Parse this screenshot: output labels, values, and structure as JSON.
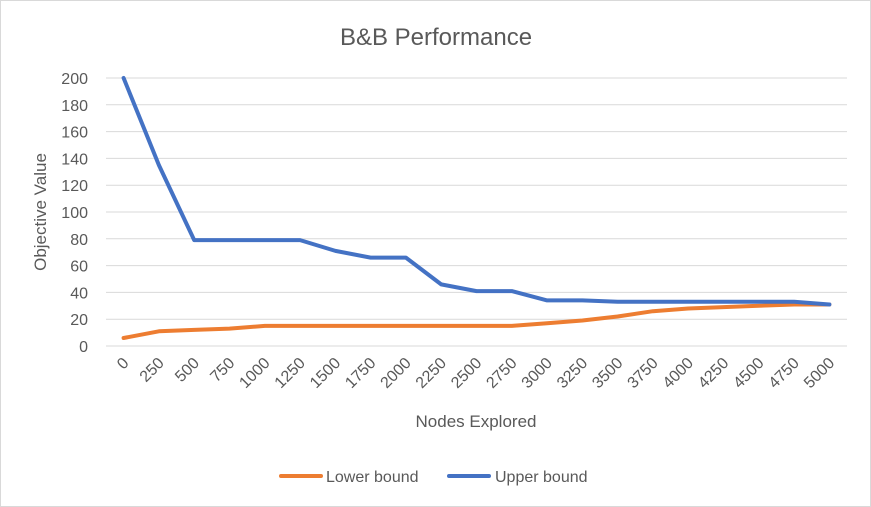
{
  "chart_data": {
    "type": "line",
    "title": "B&B Performance",
    "xlabel": "Nodes Explored",
    "ylabel": "Objective Value",
    "categories": [
      "0",
      "250",
      "500",
      "750",
      "1000",
      "1250",
      "1500",
      "1750",
      "2000",
      "2250",
      "2500",
      "2750",
      "3000",
      "3250",
      "3500",
      "3750",
      "4000",
      "4250",
      "4500",
      "4750",
      "5000"
    ],
    "ylim": [
      0,
      200
    ],
    "yticks": [
      0,
      20,
      40,
      60,
      80,
      100,
      120,
      140,
      160,
      180,
      200
    ],
    "grid": true,
    "legend_position": "bottom",
    "series": [
      {
        "name": "Lower bound",
        "color": "#ED7D31",
        "values": [
          6,
          11,
          12,
          13,
          15,
          15,
          15,
          15,
          15,
          15,
          15,
          15,
          17,
          19,
          22,
          26,
          28,
          29,
          30,
          31,
          31
        ]
      },
      {
        "name": "Upper bound",
        "color": "#4472C4",
        "values": [
          200,
          135,
          79,
          79,
          79,
          79,
          71,
          66,
          66,
          46,
          41,
          41,
          34,
          34,
          33,
          33,
          33,
          33,
          33,
          33,
          31
        ]
      }
    ]
  }
}
